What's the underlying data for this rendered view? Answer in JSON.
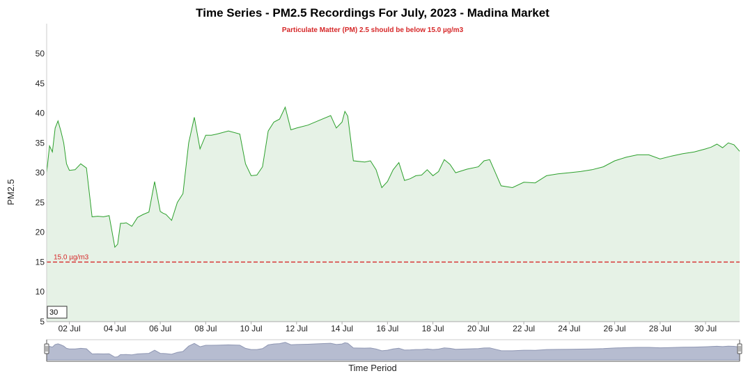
{
  "chart_data": {
    "type": "area",
    "title": "Time Series - PM2.5 Recordings For July, 2023 - Madina Market",
    "subtitle": "Particulate Matter (PM) 2.5 should be below 15.0 µg/m3",
    "xlabel": "Time Period",
    "ylabel": "PM2.5",
    "ylim": [
      5,
      55
    ],
    "xlim": [
      "2023-07-01",
      "2023-07-31T12:00"
    ],
    "yticks": [
      "5",
      "10",
      "15",
      "20",
      "25",
      "30",
      "35",
      "40",
      "45",
      "50"
    ],
    "xticks": [
      {
        "x": "2023-07-02",
        "label": "02 Jul"
      },
      {
        "x": "2023-07-04",
        "label": "04 Jul"
      },
      {
        "x": "2023-07-06",
        "label": "06 Jul"
      },
      {
        "x": "2023-07-08",
        "label": "08 Jul"
      },
      {
        "x": "2023-07-10",
        "label": "10 Jul"
      },
      {
        "x": "2023-07-12",
        "label": "12 Jul"
      },
      {
        "x": "2023-07-14",
        "label": "14 Jul"
      },
      {
        "x": "2023-07-16",
        "label": "16 Jul"
      },
      {
        "x": "2023-07-18",
        "label": "18 Jul"
      },
      {
        "x": "2023-07-20",
        "label": "20 Jul"
      },
      {
        "x": "2023-07-22",
        "label": "22 Jul"
      },
      {
        "x": "2023-07-24",
        "label": "24 Jul"
      },
      {
        "x": "2023-07-26",
        "label": "26 Jul"
      },
      {
        "x": "2023-07-28",
        "label": "28 Jul"
      },
      {
        "x": "2023-07-30",
        "label": "30 Jul"
      }
    ],
    "reference_line": {
      "y": 15.0,
      "label": "15.0 µg/m3",
      "color": "#d62728"
    },
    "series_color": "#2ca02c",
    "fill_color": "#e6f2e6",
    "range_box_label": "30",
    "grid": false,
    "series": [
      {
        "x": [
          "2023-07-01T00:00",
          "2023-07-01T03:00",
          "2023-07-01T06:00",
          "2023-07-01T09:00",
          "2023-07-01T12:00",
          "2023-07-01T15:00",
          "2023-07-01T18:00",
          "2023-07-01T21:00",
          "2023-07-02T00:00",
          "2023-07-02T06:00",
          "2023-07-02T12:00",
          "2023-07-02T18:00",
          "2023-07-03T00:00",
          "2023-07-03T06:00",
          "2023-07-03T12:00",
          "2023-07-03T18:00",
          "2023-07-04T00:00",
          "2023-07-04T03:00",
          "2023-07-04T06:00",
          "2023-07-04T09:00",
          "2023-07-04T12:00",
          "2023-07-04T18:00",
          "2023-07-05T00:00",
          "2023-07-05T06:00",
          "2023-07-05T12:00",
          "2023-07-05T18:00",
          "2023-07-06T00:00",
          "2023-07-06T03:00",
          "2023-07-06T06:00",
          "2023-07-06T12:00",
          "2023-07-06T18:00",
          "2023-07-07T00:00",
          "2023-07-07T06:00",
          "2023-07-07T12:00",
          "2023-07-07T18:00",
          "2023-07-08T00:00",
          "2023-07-08T06:00",
          "2023-07-08T12:00",
          "2023-07-09T00:00",
          "2023-07-09T12:00",
          "2023-07-09T18:00",
          "2023-07-10T00:00",
          "2023-07-10T06:00",
          "2023-07-10T12:00",
          "2023-07-10T18:00",
          "2023-07-11T00:00",
          "2023-07-11T06:00",
          "2023-07-11T12:00",
          "2023-07-11T18:00",
          "2023-07-12T00:00",
          "2023-07-12T12:00",
          "2023-07-13T00:00",
          "2023-07-13T12:00",
          "2023-07-13T18:00",
          "2023-07-14T00:00",
          "2023-07-14T03:00",
          "2023-07-14T06:00",
          "2023-07-14T12:00",
          "2023-07-15T00:00",
          "2023-07-15T06:00",
          "2023-07-15T12:00",
          "2023-07-15T18:00",
          "2023-07-16T00:00",
          "2023-07-16T06:00",
          "2023-07-16T12:00",
          "2023-07-16T18:00",
          "2023-07-17T00:00",
          "2023-07-17T06:00",
          "2023-07-17T12:00",
          "2023-07-17T18:00",
          "2023-07-18T00:00",
          "2023-07-18T06:00",
          "2023-07-18T12:00",
          "2023-07-18T18:00",
          "2023-07-19T00:00",
          "2023-07-19T12:00",
          "2023-07-20T00:00",
          "2023-07-20T06:00",
          "2023-07-20T12:00",
          "2023-07-20T18:00",
          "2023-07-21T00:00",
          "2023-07-21T12:00",
          "2023-07-22T00:00",
          "2023-07-22T12:00",
          "2023-07-23T00:00",
          "2023-07-23T12:00",
          "2023-07-24T00:00",
          "2023-07-24T12:00",
          "2023-07-25T00:00",
          "2023-07-25T12:00",
          "2023-07-26T00:00",
          "2023-07-26T12:00",
          "2023-07-27T00:00",
          "2023-07-27T12:00",
          "2023-07-28T00:00",
          "2023-07-28T12:00",
          "2023-07-29T00:00",
          "2023-07-29T12:00",
          "2023-07-30T00:00",
          "2023-07-30T06:00",
          "2023-07-30T12:00",
          "2023-07-30T18:00",
          "2023-07-31T00:00",
          "2023-07-31T06:00",
          "2023-07-31T12:00"
        ],
        "y": [
          30.0,
          34.5,
          33.5,
          37.5,
          38.7,
          37.0,
          35.0,
          31.5,
          30.4,
          30.5,
          31.5,
          30.8,
          22.6,
          22.7,
          22.6,
          22.8,
          17.5,
          18.0,
          21.5,
          21.5,
          21.6,
          21.0,
          22.5,
          23.0,
          23.4,
          28.5,
          23.5,
          23.2,
          23.0,
          22.0,
          25.0,
          26.5,
          35.0,
          39.3,
          34.0,
          36.3,
          36.3,
          36.5,
          37.0,
          36.5,
          31.5,
          29.5,
          29.6,
          31.0,
          37.0,
          38.5,
          39.0,
          41.0,
          37.2,
          37.5,
          38.0,
          38.8,
          39.6,
          37.5,
          38.5,
          40.3,
          39.5,
          32.0,
          31.8,
          32.0,
          30.5,
          27.5,
          28.5,
          30.5,
          31.7,
          28.7,
          29.0,
          29.5,
          29.6,
          30.5,
          29.5,
          30.2,
          32.2,
          31.4,
          30.0,
          30.6,
          31.0,
          32.0,
          32.2,
          30.0,
          27.8,
          27.5,
          28.4,
          28.3,
          29.5,
          29.8,
          30.0,
          30.2,
          30.5,
          31.0,
          32.0,
          32.6,
          33.0,
          33.0,
          32.3,
          32.8,
          33.2,
          33.5,
          34.0,
          34.3,
          34.8,
          34.2,
          35.0,
          34.7,
          33.6
        ]
      }
    ]
  }
}
